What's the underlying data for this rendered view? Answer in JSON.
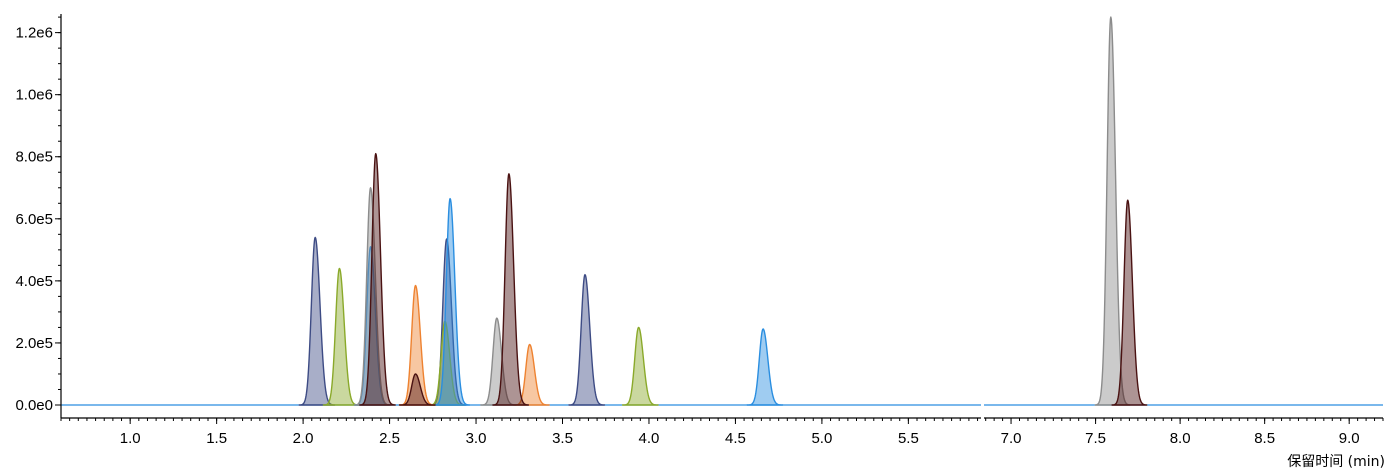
{
  "chart_data": {
    "type": "area",
    "xlabel": "保留时间 (min)",
    "ylabel": "",
    "y_ticks": [
      "0.0e0",
      "2.0e5",
      "4.0e5",
      "6.0e5",
      "8.0e5",
      "1.0e6",
      "1.2e6"
    ],
    "y_tick_values": [
      0,
      200000,
      400000,
      600000,
      800000,
      1000000,
      1200000
    ],
    "ylim": [
      0,
      1260000
    ],
    "x_panels": [
      {
        "xlim": [
          0.6,
          5.92
        ],
        "x_ticks": [
          "1.0",
          "1.5",
          "2.0",
          "2.5",
          "3.0",
          "3.5",
          "4.0",
          "4.5",
          "5.0",
          "5.5"
        ],
        "x_tick_values": [
          1.0,
          1.5,
          2.0,
          2.5,
          3.0,
          3.5,
          4.0,
          4.5,
          5.0,
          5.5
        ]
      },
      {
        "xlim": [
          6.84,
          9.2
        ],
        "x_ticks": [
          "7.0",
          "7.5",
          "8.0",
          "8.5",
          "9.0"
        ],
        "x_tick_values": [
          7.0,
          7.5,
          8.0,
          8.5,
          9.0
        ]
      }
    ],
    "colors": {
      "navy": "#3d4b84",
      "olive": "#8aa92a",
      "blue": "#2a8ee0",
      "orange": "#ee8230",
      "gray": "#8c8c8c",
      "maroon": "#4a1212"
    },
    "series": [
      {
        "color_key": "navy",
        "peaks": [
          [
            2.07,
            540000
          ],
          [
            2.83,
            535000
          ],
          [
            3.63,
            420000
          ]
        ]
      },
      {
        "color_key": "olive",
        "peaks": [
          [
            2.21,
            440000
          ],
          [
            2.82,
            270000
          ],
          [
            3.94,
            250000
          ]
        ]
      },
      {
        "color_key": "blue",
        "peaks": [
          [
            2.39,
            510000
          ],
          [
            2.85,
            665000
          ],
          [
            4.66,
            245000
          ]
        ]
      },
      {
        "color_key": "orange",
        "peaks": [
          [
            2.65,
            385000
          ],
          [
            3.31,
            195000
          ]
        ]
      },
      {
        "color_key": "gray",
        "peaks": [
          [
            2.39,
            700000
          ],
          [
            3.12,
            280000
          ],
          [
            7.59,
            1250000
          ]
        ]
      },
      {
        "color_key": "maroon",
        "peaks": [
          [
            2.42,
            810000
          ],
          [
            2.65,
            100000
          ],
          [
            3.19,
            745000
          ],
          [
            7.69,
            660000
          ]
        ]
      }
    ]
  }
}
